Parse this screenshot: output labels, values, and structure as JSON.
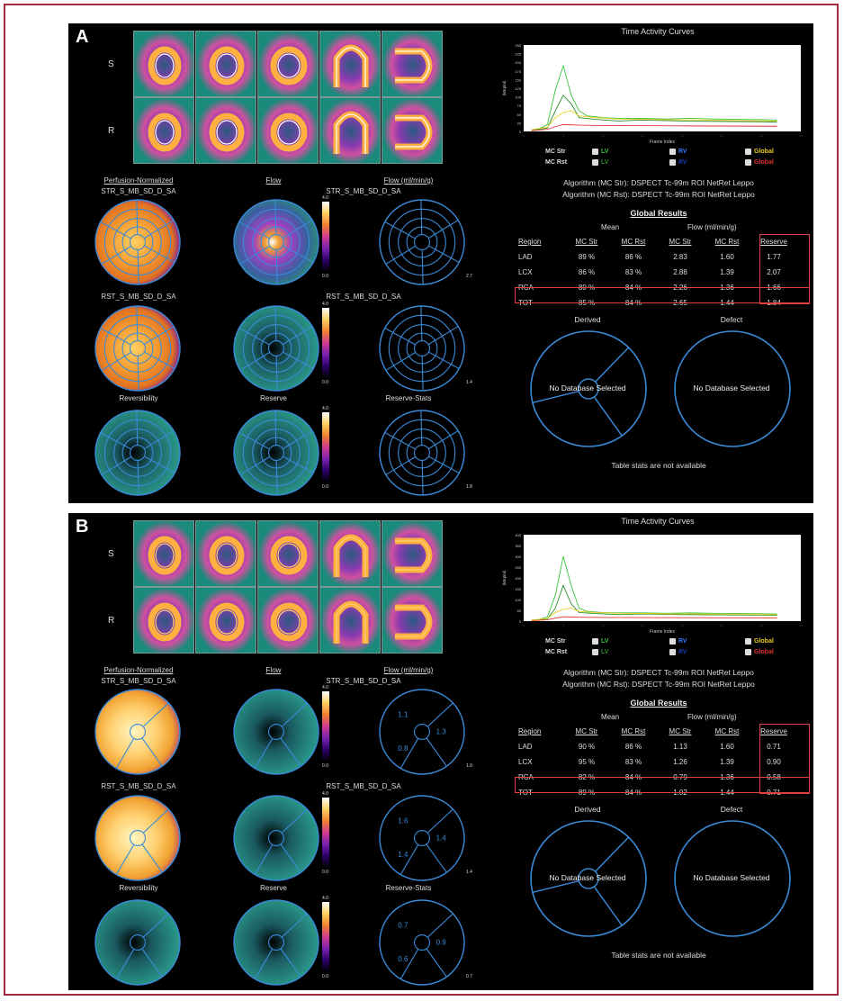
{
  "panels": [
    {
      "label": "A",
      "row_labels": [
        "S",
        "R"
      ],
      "tiles": [
        "SA",
        "SA",
        "SA",
        "HLA",
        "VLA"
      ],
      "col_titles": [
        "Perfusion-Normalized",
        "Flow",
        "Flow (ml/min/g)"
      ],
      "stress_name": "STR_S_MB_SD_D_SA",
      "rest_name": "RST_S_MB_SD_D_SA",
      "row3_titles": [
        "Reversibility",
        "Reserve",
        "Reserve-Stats"
      ],
      "colorbar": {
        "max": "4.0",
        "min": "0.0"
      },
      "stats_scales": [
        "2.7",
        "1.4",
        "1.8"
      ],
      "tac": {
        "title": "Time Activity Curves",
        "ylabel": "(kBq/ml)",
        "xlabel": "Frame Index",
        "yticks": [
          "250",
          "225",
          "200",
          "175",
          "150",
          "125",
          "100",
          "75",
          "50",
          "25",
          "0"
        ],
        "xticks": [
          "0",
          "5",
          "10",
          "15",
          "20",
          "25",
          "30",
          "35"
        ],
        "ymax": 250
      },
      "legend": {
        "mc_str": "MC Str",
        "mc_rst": "MC Rst",
        "lv": "LV",
        "rv": "RV",
        "global": "Global"
      },
      "algorithm_str": "Algorithm (MC Str):  DSPECT Tc-99m ROI NetRet Leppo",
      "algorithm_rst": "Algorithm (MC Rst):  DSPECT Tc-99m ROI NetRet Leppo",
      "global_results": {
        "title": "Global Results",
        "group_mean": "Mean",
        "group_flow": "Flow (ml/min/g)",
        "headers": [
          "Region",
          "MC Str",
          "MC Rst",
          "MC Str",
          "MC Rst",
          "Reserve"
        ],
        "rows": [
          [
            "LAD",
            "89 %",
            "86 %",
            "2.83",
            "1.60",
            "1.77"
          ],
          [
            "LCX",
            "86 %",
            "83 %",
            "2.88",
            "1.39",
            "2.07"
          ],
          [
            "RCA",
            "80 %",
            "84 %",
            "2.26",
            "1.36",
            "1.66"
          ],
          [
            "TOT",
            "85 %",
            "84 %",
            "2.65",
            "1.44",
            "1.84"
          ]
        ]
      },
      "derived": "Derived",
      "defect": "Defect",
      "no_db": "No Database Selected",
      "table_stats": "Table stats are not available"
    },
    {
      "label": "B",
      "row_labels": [
        "S",
        "R"
      ],
      "tiles": [
        "SA",
        "SA",
        "SA",
        "HLA",
        "VLA"
      ],
      "col_titles": [
        "Perfusion-Normalized",
        "Flow",
        "Flow (ml/min/g)"
      ],
      "stress_name": "STR_S_MB_SD_D_SA",
      "rest_name": "RST_S_MB_SD_D_SA",
      "row3_titles": [
        "Reversibility",
        "Reserve",
        "Reserve-Stats"
      ],
      "colorbar": {
        "max": "4.0",
        "min": "0.0"
      },
      "stats_scales": [
        "1.0",
        "1.4",
        "0.7"
      ],
      "stats_values": [
        [
          "1.1",
          "1.3",
          "0.8"
        ],
        [
          "1.6",
          "1.4",
          "1.4"
        ],
        [
          "0.7",
          "0.9",
          "0.6"
        ]
      ],
      "tac": {
        "title": "Time Activity Curves",
        "ylabel": "(kBq/ml)",
        "xlabel": "Frame Index",
        "yticks": [
          "400",
          "350",
          "300",
          "250",
          "200",
          "150",
          "100",
          "50",
          "0"
        ],
        "xticks": [
          "0",
          "5",
          "10",
          "15",
          "20",
          "25",
          "30",
          "35"
        ],
        "ymax": 400
      },
      "legend": {
        "mc_str": "MC Str",
        "mc_rst": "MC Rst",
        "lv": "LV",
        "rv": "RV",
        "global": "Global"
      },
      "algorithm_str": "Algorithm (MC Str):  DSPECT Tc-99m ROI NetRet Leppo",
      "algorithm_rst": "Algorithm (MC Rst):  DSPECT Tc-99m ROI NetRet Leppo",
      "global_results": {
        "title": "Global Results",
        "group_mean": "Mean",
        "group_flow": "Flow (ml/min/g)",
        "headers": [
          "Region",
          "MC Str",
          "MC Rst",
          "MC Str",
          "MC Rst",
          "Reserve"
        ],
        "rows": [
          [
            "LAD",
            "90 %",
            "86 %",
            "1.13",
            "1.60",
            "0.71"
          ],
          [
            "LCX",
            "95 %",
            "83 %",
            "1.26",
            "1.39",
            "0.90"
          ],
          [
            "RCA",
            "82 %",
            "84 %",
            "0.79",
            "1.36",
            "0.58"
          ],
          [
            "TOT",
            "89 %",
            "84 %",
            "1.02",
            "1.44",
            "0.71"
          ]
        ]
      },
      "derived": "Derived",
      "defect": "Defect",
      "no_db": "No Database Selected",
      "table_stats": "Table stats are not available"
    }
  ],
  "colors": {
    "frame": "#a3273e",
    "highlight": "#e04040",
    "lv": "#3ac23a",
    "rv": "#3a7aff",
    "global": "#e8d020",
    "global_rst": "#e03030",
    "bullseye_line": "#3a8ad8"
  }
}
